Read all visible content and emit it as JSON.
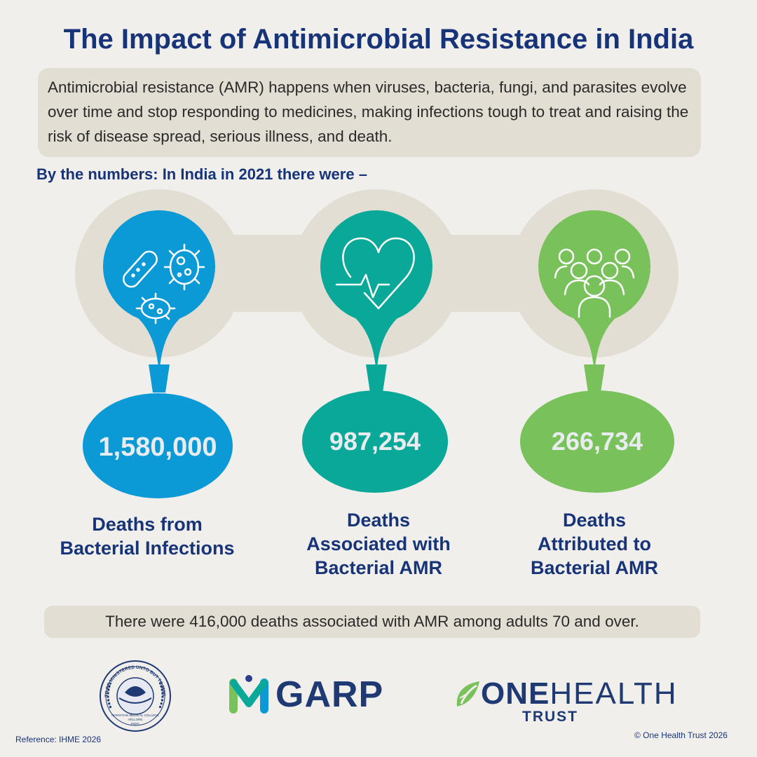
{
  "title": "The Impact of Antimicrobial Resistance in India",
  "intro": "Antimicrobial resistance (AMR) happens when viruses, bacteria, fungi, and parasites evolve over time and stop responding to medicines, making infections tough to treat and raising the risk of disease spread, serious illness, and death.",
  "subheading": "By the numbers: In India in 2021 there were –",
  "stats": [
    {
      "icon": "bacteria-icon",
      "value": "1,580,000",
      "label_lines": [
        "Deaths from",
        "Bacterial Infections"
      ],
      "color": "#0c9ad7"
    },
    {
      "icon": "heartbeat-icon",
      "value": "987,254",
      "label_lines": [
        "Deaths",
        "Associated with",
        "Bacterial AMR"
      ],
      "color": "#09a898"
    },
    {
      "icon": "people-group-icon",
      "value": "266,734",
      "label_lines": [
        "Deaths",
        "Attributed to",
        "Bacterial AMR"
      ],
      "color": "#79c15a"
    }
  ],
  "footnote": "There were 416,000 deaths associated with AMR among adults 70 and over.",
  "logos": {
    "cmc_seal_text": "NOT TO BE MINISTERED UNTO BUT TO MINISTER",
    "cmc_name": "CHRISTIAN MEDICAL COLLEGE",
    "cmc_city": "VELLORE",
    "cmc_country": "INDIA",
    "garp": "GARP",
    "oht_one": "ONE",
    "oht_health": "HEALTH",
    "oht_trust": "TRUST"
  },
  "reference": "Reference: IHME 2026",
  "copyright": "© One Health Trust 2026",
  "colors": {
    "title": "#183478",
    "band": "#e3ded3",
    "background": "#f1efec"
  }
}
